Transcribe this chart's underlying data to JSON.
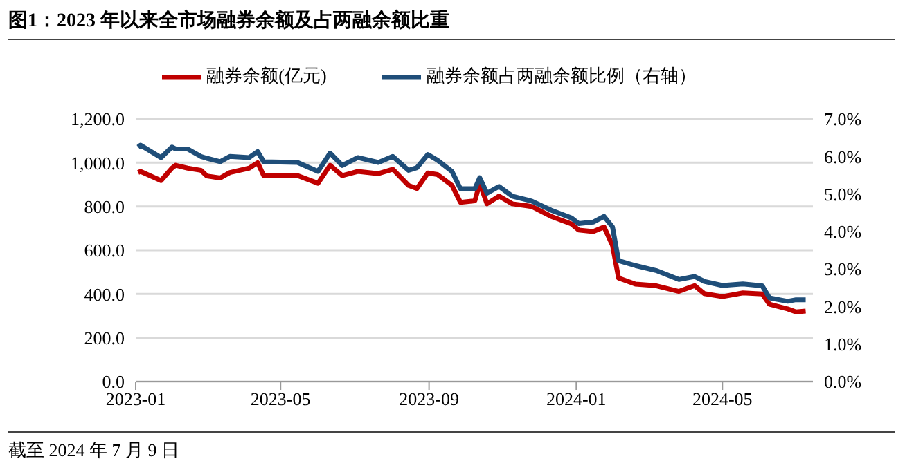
{
  "chart_data": {
    "type": "line",
    "title": "图1：2023 年以来全市场融券余额及占两融余额比重",
    "annotations": [
      "截至 2024 年 7 月 9 日"
    ],
    "x": [
      "2023-01-03",
      "2023-01-05",
      "2023-01-22",
      "2023-01-31",
      "2023-02-03",
      "2023-02-13",
      "2023-02-24",
      "2023-03-01",
      "2023-03-12",
      "2023-03-20",
      "2023-04-05",
      "2023-04-12",
      "2023-04-17",
      "2023-05-15",
      "2023-06-01",
      "2023-06-11",
      "2023-06-21",
      "2023-07-04",
      "2023-07-21",
      "2023-08-02",
      "2023-08-15",
      "2023-08-22",
      "2023-08-31",
      "2023-09-08",
      "2023-09-20",
      "2023-09-27",
      "2023-10-09",
      "2023-10-13",
      "2023-10-19",
      "2023-10-29",
      "2023-11-09",
      "2023-11-25",
      "2023-12-11",
      "2023-12-28",
      "2024-01-03",
      "2024-01-15",
      "2024-01-24",
      "2024-01-31",
      "2024-02-05",
      "2024-02-19",
      "2024-03-07",
      "2024-03-26",
      "2024-04-08",
      "2024-04-16",
      "2024-05-01",
      "2024-05-18",
      "2024-06-03",
      "2024-06-09",
      "2024-06-24",
      "2024-07-01",
      "2024-07-09"
    ],
    "series": [
      {
        "name": "融券余额(亿元)",
        "color": "#c00000",
        "values": [
          955,
          960,
          918,
          975,
          988,
          975,
          965,
          939,
          930,
          955,
          975,
          1000,
          941,
          941,
          906,
          988,
          941,
          960,
          950,
          970,
          896,
          882,
          953,
          946,
          896,
          819,
          826,
          906,
          812,
          847,
          812,
          800,
          755,
          720,
          692,
          685,
          706,
          622,
          473,
          445,
          438,
          412,
          438,
          402,
          388,
          405,
          400,
          353,
          332,
          318,
          322
        ]
      },
      {
        "name": "融券余额占两融余额比例（右轴）",
        "color": "#1f4e79",
        "axis": "y2",
        "values": [
          6.25,
          6.3,
          5.97,
          6.25,
          6.2,
          6.2,
          6.0,
          5.95,
          5.86,
          6.0,
          5.97,
          6.13,
          5.86,
          5.84,
          5.6,
          6.09,
          5.76,
          5.97,
          5.84,
          6.0,
          5.63,
          5.7,
          6.05,
          5.9,
          5.6,
          5.14,
          5.14,
          5.43,
          5.02,
          5.2,
          4.94,
          4.81,
          4.57,
          4.36,
          4.21,
          4.25,
          4.4,
          4.12,
          3.22,
          3.09,
          2.96,
          2.72,
          2.8,
          2.67,
          2.56,
          2.6,
          2.55,
          2.23,
          2.14,
          2.18,
          2.18
        ]
      }
    ],
    "xlim": [
      "2023-01-01",
      "2024-07-15"
    ],
    "xticks": [
      {
        "value": "2023-01-01",
        "label": "2023-01"
      },
      {
        "value": "2023-05-01",
        "label": "2023-05"
      },
      {
        "value": "2023-09-01",
        "label": "2023-09"
      },
      {
        "value": "2024-01-01",
        "label": "2024-01"
      },
      {
        "value": "2024-05-01",
        "label": "2024-05"
      }
    ],
    "ylim": [
      0,
      1200
    ],
    "yticks": [
      {
        "value": 0,
        "label": "0.0"
      },
      {
        "value": 200,
        "label": "200.0"
      },
      {
        "value": 400,
        "label": "400.0"
      },
      {
        "value": 600,
        "label": "600.0"
      },
      {
        "value": 800,
        "label": "800.0"
      },
      {
        "value": 1000,
        "label": "1,000.0"
      },
      {
        "value": 1200,
        "label": "1,200.0"
      }
    ],
    "y2lim": [
      0,
      7
    ],
    "y2ticks": [
      {
        "value": 0,
        "label": "0.0%"
      },
      {
        "value": 1,
        "label": "1.0%"
      },
      {
        "value": 2,
        "label": "2.0%"
      },
      {
        "value": 3,
        "label": "3.0%"
      },
      {
        "value": 4,
        "label": "4.0%"
      },
      {
        "value": 5,
        "label": "5.0%"
      },
      {
        "value": 6,
        "label": "6.0%"
      },
      {
        "value": 7,
        "label": "7.0%"
      }
    ],
    "grid": "y",
    "legend": "top",
    "marker": "none",
    "line_style": "solid"
  }
}
